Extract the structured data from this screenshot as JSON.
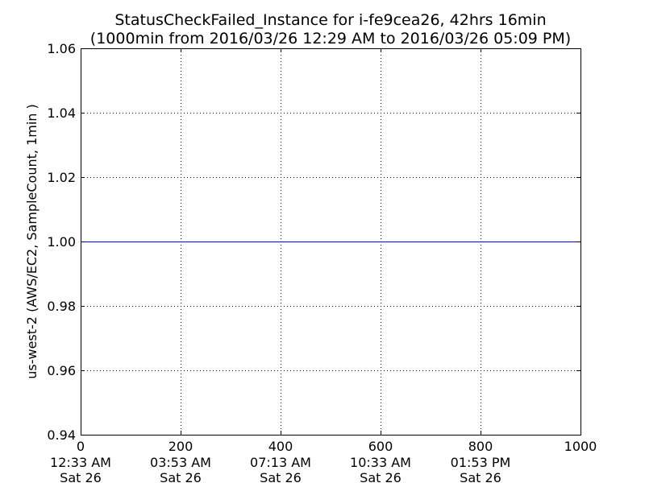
{
  "chart_data": {
    "type": "line",
    "title": "StatusCheckFailed_Instance for i-fe9cea26, 42hrs 16min",
    "subtitle": "(1000min from 2016/03/26 12:29 AM to 2016/03/26 05:09 PM)",
    "xlabel": "",
    "ylabel": "us-west-2 (AWS/EC2, SampleCount, 1min )",
    "xlim": [
      0,
      1000
    ],
    "ylim": [
      0.94,
      1.06
    ],
    "grid": true,
    "x_ticks": [
      {
        "value": 0,
        "label": "0",
        "sub1": "12:33 AM",
        "sub2": "Sat 26"
      },
      {
        "value": 200,
        "label": "200",
        "sub1": "03:53 AM",
        "sub2": "Sat 26"
      },
      {
        "value": 400,
        "label": "400",
        "sub1": "07:13 AM",
        "sub2": "Sat 26"
      },
      {
        "value": 600,
        "label": "600",
        "sub1": "10:33 AM",
        "sub2": "Sat 26"
      },
      {
        "value": 800,
        "label": "800",
        "sub1": "01:53 PM",
        "sub2": "Sat 26"
      },
      {
        "value": 1000,
        "label": "1000",
        "sub1": "",
        "sub2": ""
      }
    ],
    "y_ticks": [
      {
        "value": 0.94,
        "label": "0.94"
      },
      {
        "value": 0.96,
        "label": "0.96"
      },
      {
        "value": 0.98,
        "label": "0.98"
      },
      {
        "value": 1.0,
        "label": "1.00"
      },
      {
        "value": 1.02,
        "label": "1.02"
      },
      {
        "value": 1.04,
        "label": "1.04"
      },
      {
        "value": 1.06,
        "label": "1.06"
      }
    ],
    "series": [
      {
        "color": "#0000ff",
        "x": [
          0,
          1000
        ],
        "y": [
          1.0,
          1.0
        ]
      }
    ]
  }
}
